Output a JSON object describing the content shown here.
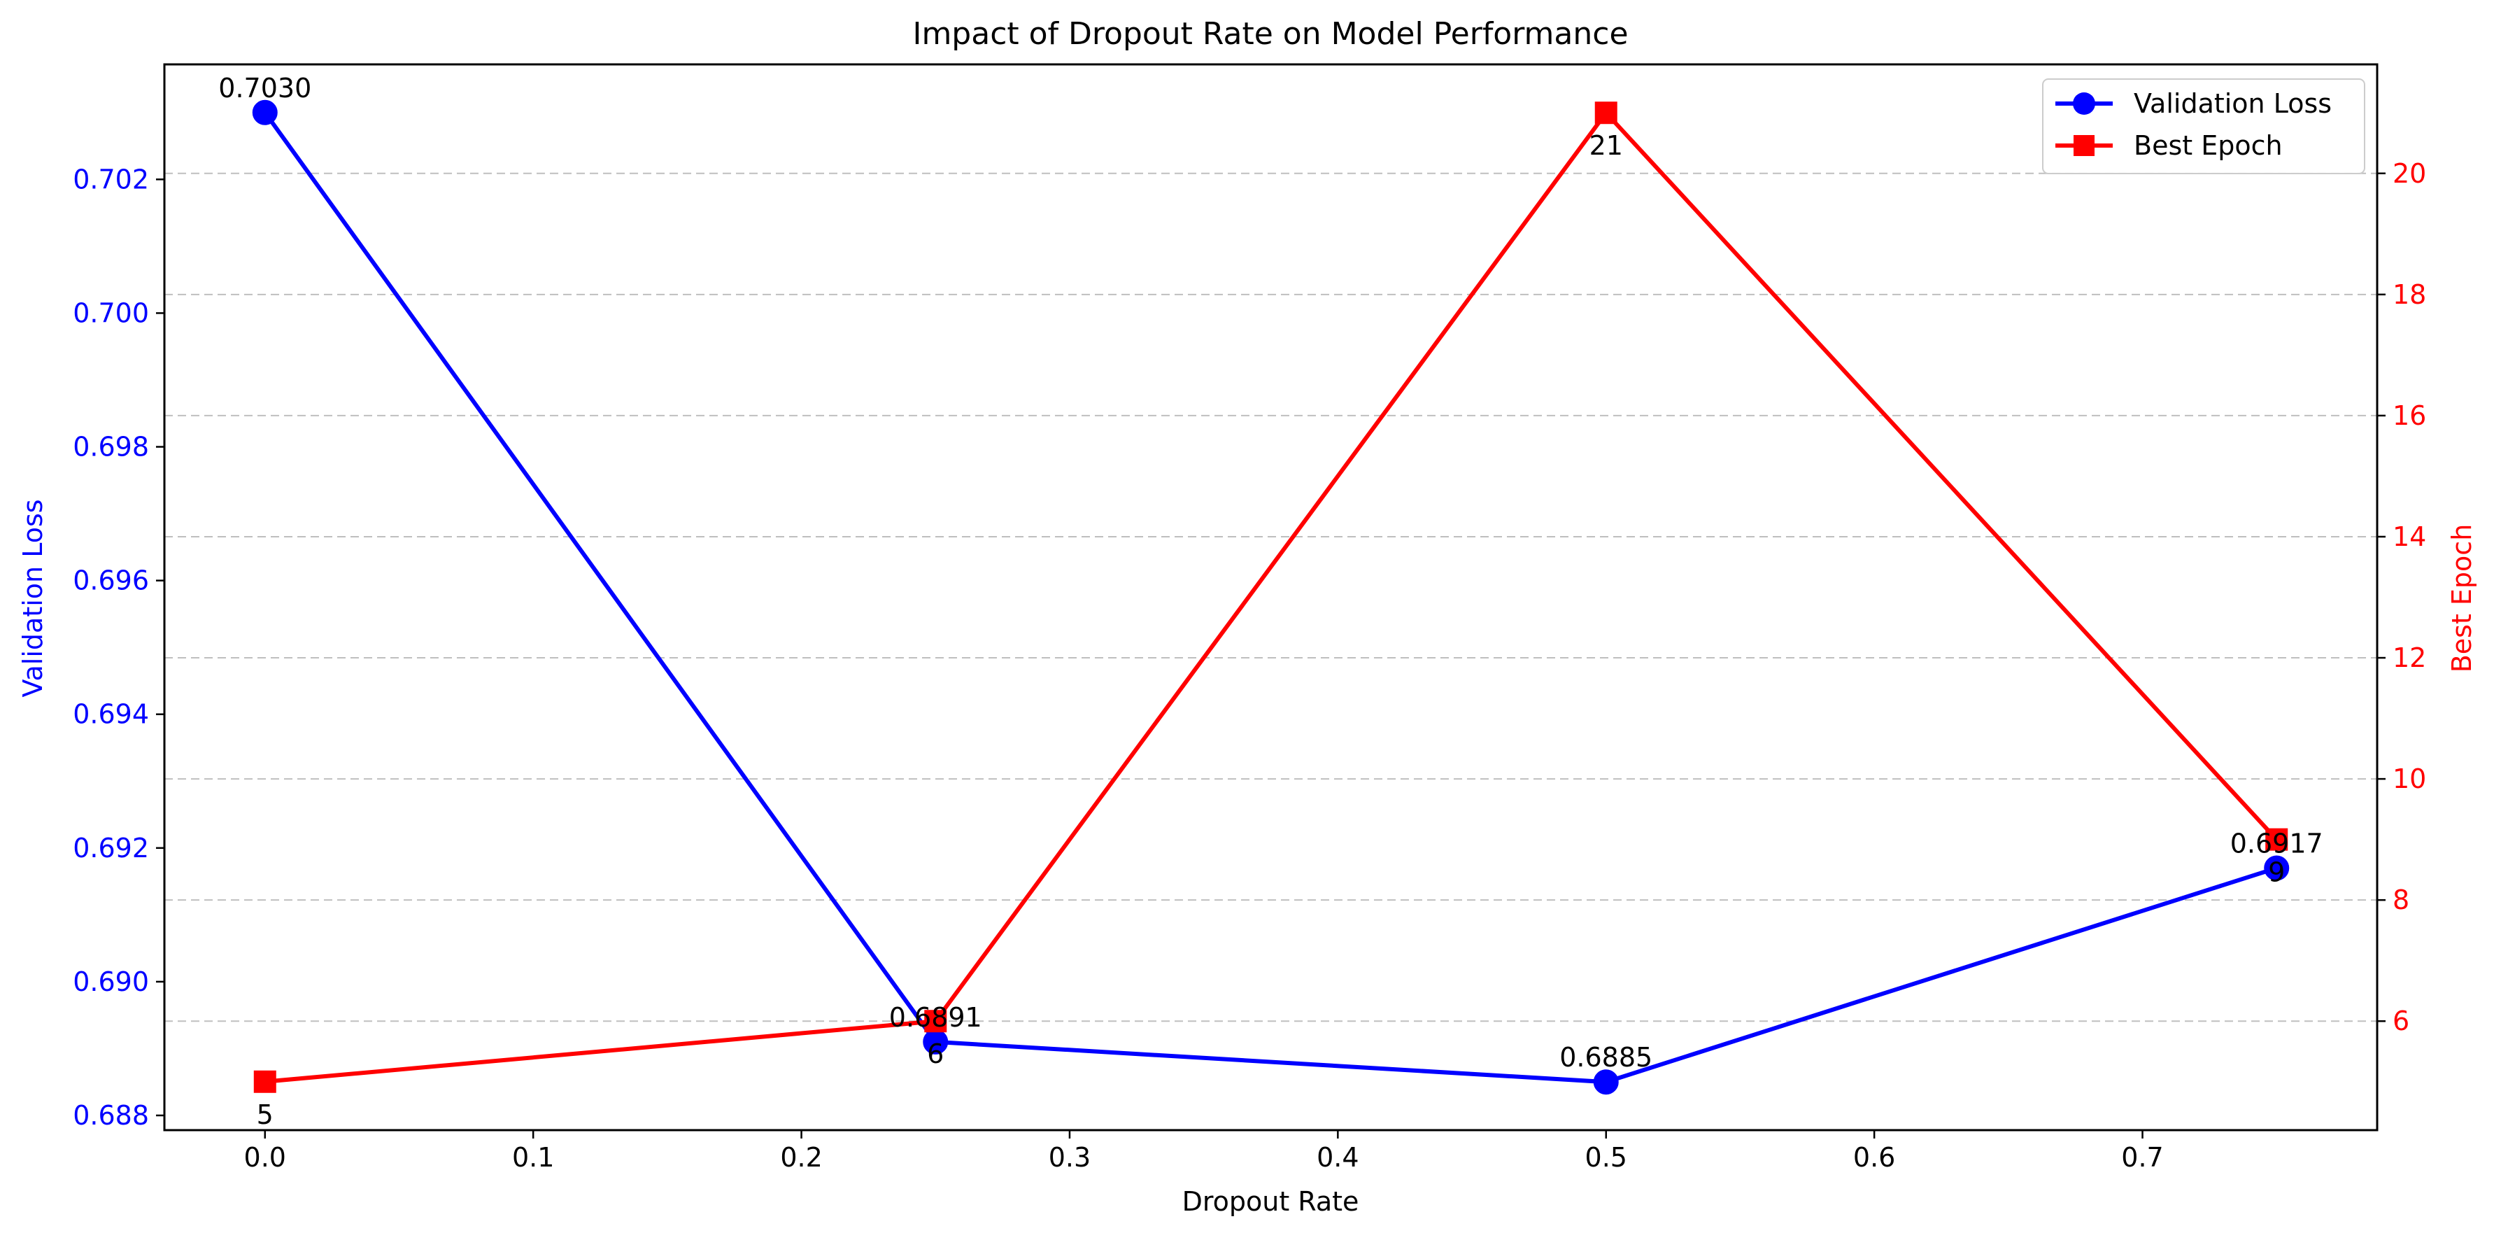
{
  "chart_data": {
    "type": "line",
    "title": "Impact of Dropout Rate on Model Performance",
    "xlabel": "Dropout Rate",
    "ylabel_left": "Validation Loss",
    "ylabel_right": "Best Epoch",
    "x": [
      0.0,
      0.25,
      0.5,
      0.75
    ],
    "xlim": [
      -0.0375,
      0.7875
    ],
    "x_ticks": [
      "0.0",
      "0.1",
      "0.2",
      "0.3",
      "0.4",
      "0.5",
      "0.6",
      "0.7"
    ],
    "x_tick_values": [
      0.0,
      0.1,
      0.2,
      0.3,
      0.4,
      0.5,
      0.6,
      0.7
    ],
    "ylim_left": [
      0.68778,
      0.70372
    ],
    "y_left_ticks": [
      "0.688",
      "0.690",
      "0.692",
      "0.694",
      "0.696",
      "0.698",
      "0.700",
      "0.702"
    ],
    "y_left_tick_values": [
      0.688,
      0.69,
      0.692,
      0.694,
      0.696,
      0.698,
      0.7,
      0.702
    ],
    "ylim_right": [
      4.2,
      21.8
    ],
    "y_right_ticks": [
      "6",
      "8",
      "10",
      "12",
      "14",
      "16",
      "18",
      "20"
    ],
    "y_right_tick_values": [
      6,
      8,
      10,
      12,
      14,
      16,
      18,
      20
    ],
    "grid": "horizontal dashed",
    "legend_position": "top-right",
    "series": [
      {
        "name": "Validation Loss",
        "axis": "left",
        "color": "#0000ff",
        "marker": "circle",
        "values": [
          0.703,
          0.6891,
          0.6885,
          0.6917
        ],
        "labels": [
          "0.7030",
          "0.6891",
          "0.6885",
          "0.6917"
        ]
      },
      {
        "name": "Best Epoch",
        "axis": "right",
        "color": "#ff0000",
        "marker": "square",
        "values": [
          5,
          6,
          21,
          9
        ],
        "labels": [
          "5",
          "6",
          "21",
          "9"
        ]
      }
    ]
  }
}
